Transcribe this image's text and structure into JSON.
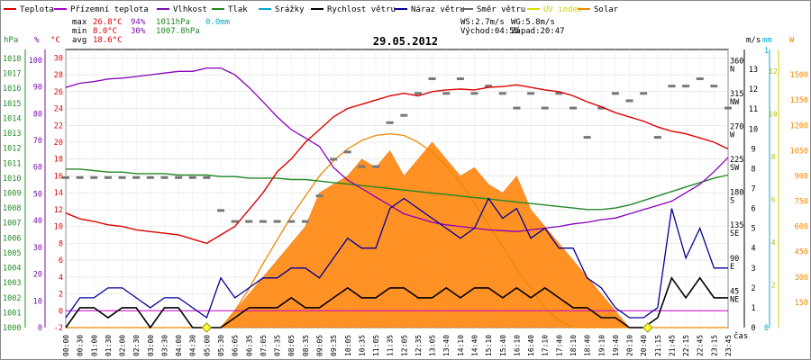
{
  "chart_data": {
    "type": "line",
    "title": "29.05.2012",
    "xlabel": "čas",
    "x_ticks": [
      "00:00",
      "00:30",
      "01:00",
      "01:30",
      "02:00",
      "02:30",
      "03:00",
      "03:30",
      "04:00",
      "04:30",
      "05:00",
      "05:30",
      "06:05",
      "06:35",
      "07:05",
      "07:35",
      "08:05",
      "08:35",
      "09:05",
      "09:35",
      "10:05",
      "10:35",
      "11:05",
      "11:35",
      "12:05",
      "12:35",
      "13:05",
      "13:40",
      "14:10",
      "14:40",
      "15:10",
      "15:40",
      "16:10",
      "16:40",
      "17:10",
      "17:40",
      "18:10",
      "18:40",
      "19:10",
      "19:40",
      "20:10",
      "20:40",
      "21:15",
      "21:45",
      "22:15",
      "22:45",
      "23:15",
      "23:45"
    ],
    "legend": [
      {
        "name": "Teplota",
        "color": "#dd0000"
      },
      {
        "name": "Přízemní teplota",
        "color": "#aa00cc"
      },
      {
        "name": "Vlhkost",
        "color": "#7711aa"
      },
      {
        "name": "Tlak",
        "color": "#228822"
      },
      {
        "name": "Srážky",
        "color": "#00aacc"
      },
      {
        "name": "Rychlost větru",
        "color": "#000000"
      },
      {
        "name": "Náraz větru",
        "color": "#000099"
      },
      {
        "name": "Směr větru",
        "color": "#666666"
      },
      {
        "name": "UV index",
        "color": "#dddd00"
      },
      {
        "name": "Solar",
        "color": "#ee8800"
      }
    ],
    "stats": {
      "max_label": "max",
      "min_label": "min",
      "avg_label": "avg",
      "max_temp": "26.8°C",
      "max_hum": "94%",
      "max_press": "1011hPa",
      "max_rain": "0.0mm",
      "min_temp": "8.0°C",
      "min_hum": "30%",
      "min_press": "1007.8hPa",
      "avg_temp": "18.6°C"
    },
    "info": {
      "ws": "WS:2.7m/s",
      "wg": "WG:5.8m/s",
      "sunrise": "Východ:04:56",
      "sunset": "Západ:20:47"
    },
    "axes": {
      "pressure": {
        "unit": "hPa",
        "ticks": [
          "1000",
          "1001",
          "1002",
          "1003",
          "1004",
          "1005",
          "1006",
          "1007",
          "1008",
          "1009",
          "1010",
          "1011",
          "1012",
          "1013",
          "1014",
          "1015",
          "1016",
          "1017",
          "1018"
        ]
      },
      "humidity": {
        "unit": "%",
        "ticks": [
          "0",
          "10",
          "20",
          "30",
          "40",
          "50",
          "60",
          "70",
          "80",
          "90",
          "100"
        ]
      },
      "temperature": {
        "unit": "°C",
        "ticks": [
          "-2",
          "0",
          "2",
          "4",
          "6",
          "8",
          "10",
          "12",
          "14",
          "16",
          "18",
          "20",
          "22",
          "24",
          "26",
          "28",
          "30"
        ]
      },
      "direction": {
        "ticks": [
          "45",
          "NE",
          "90",
          "E",
          "135",
          "SE",
          "180",
          "S",
          "225",
          "SW",
          "270",
          "W",
          "315",
          "NW",
          "360",
          "N"
        ]
      },
      "wind": {
        "unit": "m/s",
        "ticks": [
          "0",
          "1",
          "2",
          "3",
          "4",
          "5",
          "6",
          "7",
          "8",
          "9",
          "10",
          "11",
          "12",
          "13"
        ]
      },
      "rain": {
        "unit": "mm",
        "ticks": [
          "0",
          "1"
        ]
      },
      "uv": {
        "unit": "",
        "ticks": [
          "2",
          "4",
          "6",
          "8",
          "10",
          "12"
        ]
      },
      "solar": {
        "unit": "W",
        "ticks": [
          "150",
          "300",
          "450",
          "600",
          "750",
          "900",
          "1050",
          "1200",
          "1350",
          "1500"
        ]
      }
    },
    "series": [
      {
        "name": "Teplota",
        "unit": "°C",
        "values": [
          11.6,
          10.9,
          10.6,
          10.2,
          10.0,
          9.6,
          9.4,
          9.2,
          9.0,
          8.5,
          8.0,
          9.0,
          10.0,
          12.0,
          14.0,
          16.5,
          18.0,
          20.0,
          21.5,
          23.0,
          24.0,
          24.5,
          25.0,
          25.5,
          25.8,
          25.5,
          26.0,
          26.2,
          26.3,
          26.2,
          26.5,
          26.6,
          26.8,
          26.5,
          26.2,
          26.0,
          25.5,
          24.8,
          24.2,
          23.5,
          23.0,
          22.5,
          21.8,
          21.3,
          21.0,
          20.5,
          20.0,
          19.2
        ]
      },
      {
        "name": "Přízemní teplota",
        "unit": "°C",
        "values": [
          26.5,
          27.0,
          27.2,
          27.5,
          27.6,
          27.8,
          28.0,
          28.2,
          28.4,
          28.4,
          28.8,
          28.8,
          28.0,
          26.5,
          24.8,
          23.0,
          21.5,
          20.5,
          19.5,
          17.0,
          15.5,
          14.5,
          13.5,
          12.5,
          11.5,
          11.0,
          10.5,
          10.2,
          10.0,
          9.8,
          9.6,
          9.5,
          9.4,
          9.6,
          9.8,
          10.0,
          10.3,
          10.5,
          10.8,
          11.0,
          11.5,
          12.0,
          12.5,
          13.0,
          14.0,
          15.0,
          16.5,
          18.2
        ]
      },
      {
        "name": "Tlak",
        "unit": "hPa",
        "values": [
          1010.6,
          1010.6,
          1010.5,
          1010.4,
          1010.4,
          1010.3,
          1010.3,
          1010.3,
          1010.2,
          1010.2,
          1010.2,
          1010.1,
          1010.1,
          1010.0,
          1010.0,
          1010.0,
          1009.9,
          1009.9,
          1009.8,
          1009.7,
          1009.6,
          1009.5,
          1009.4,
          1009.3,
          1009.2,
          1009.1,
          1009.0,
          1008.9,
          1008.8,
          1008.7,
          1008.6,
          1008.5,
          1008.4,
          1008.3,
          1008.2,
          1008.1,
          1008.0,
          1007.9,
          1007.9,
          1008.0,
          1008.2,
          1008.5,
          1008.8,
          1009.1,
          1009.4,
          1009.7,
          1010.0,
          1010.2
        ]
      },
      {
        "name": "Rychlost větru",
        "unit": "m/s",
        "values": [
          0.0,
          1.0,
          1.0,
          0.5,
          1.0,
          1.0,
          0.0,
          1.0,
          1.0,
          0.0,
          0.0,
          0.0,
          0.5,
          1.0,
          1.0,
          1.0,
          1.5,
          1.0,
          1.0,
          1.5,
          2.0,
          1.5,
          1.5,
          2.0,
          2.0,
          1.5,
          1.5,
          2.0,
          1.5,
          2.0,
          2.0,
          1.5,
          2.0,
          1.5,
          2.0,
          1.5,
          1.0,
          1.0,
          0.5,
          0.5,
          0.0,
          0.0,
          0.5,
          2.5,
          1.5,
          2.5,
          1.5,
          1.5
        ]
      },
      {
        "name": "Náraz větru",
        "unit": "m/s",
        "values": [
          0.5,
          1.5,
          1.5,
          2.0,
          2.0,
          1.5,
          1.0,
          1.5,
          1.5,
          1.0,
          0.5,
          2.5,
          1.5,
          2.0,
          2.5,
          2.5,
          3.0,
          3.0,
          2.5,
          3.5,
          4.5,
          4.0,
          4.0,
          6.0,
          6.5,
          6.0,
          5.5,
          5.0,
          4.5,
          5.0,
          6.5,
          5.5,
          6.0,
          4.5,
          5.0,
          4.0,
          4.0,
          2.5,
          2.0,
          1.0,
          0.5,
          0.5,
          1.0,
          6.0,
          3.5,
          5.0,
          3.0,
          3.0
        ]
      },
      {
        "name": "Směr větru",
        "unit": "°",
        "values": [
          205,
          205,
          205,
          205,
          205,
          205,
          205,
          205,
          205,
          205,
          205,
          160,
          145,
          145,
          145,
          145,
          145,
          145,
          180,
          230,
          240,
          220,
          220,
          280,
          290,
          320,
          340,
          320,
          340,
          320,
          330,
          320,
          300,
          320,
          300,
          320,
          300,
          260,
          300,
          320,
          310,
          320,
          260,
          330,
          330,
          340,
          330,
          300
        ]
      },
      {
        "name": "Solar",
        "unit": "W/m²",
        "values": [
          0,
          0,
          0,
          0,
          0,
          0,
          0,
          0,
          0,
          0,
          0,
          0,
          100,
          200,
          300,
          400,
          500,
          600,
          800,
          850,
          900,
          1000,
          950,
          1050,
          900,
          1000,
          1100,
          1000,
          900,
          950,
          850,
          800,
          900,
          700,
          600,
          500,
          400,
          300,
          200,
          100,
          0,
          0,
          0,
          0,
          0,
          0,
          0,
          0
        ]
      },
      {
        "name": "Solar max",
        "unit": "W/m²",
        "values": [
          0,
          0,
          0,
          0,
          0,
          0,
          0,
          0,
          0,
          0,
          0,
          0,
          100,
          230,
          380,
          520,
          660,
          780,
          900,
          990,
          1060,
          1110,
          1140,
          1150,
          1140,
          1100,
          1040,
          960,
          860,
          740,
          610,
          480,
          350,
          230,
          120,
          40,
          0,
          0,
          0,
          0,
          0,
          0,
          0,
          0,
          0,
          0,
          0,
          0
        ]
      },
      {
        "name": "Srážky",
        "unit": "mm",
        "values": [
          0,
          0,
          0,
          0,
          0,
          0,
          0,
          0,
          0,
          0,
          0,
          0,
          0,
          0,
          0,
          0,
          0,
          0,
          0,
          0,
          0,
          0,
          0,
          0,
          0,
          0,
          0,
          0,
          0,
          0,
          0,
          0,
          0,
          0,
          0,
          0,
          0,
          0,
          0,
          0,
          0,
          0,
          0,
          0,
          0,
          0,
          0,
          0
        ]
      }
    ],
    "markers": [
      {
        "name": "sunrise",
        "time_index": 10.0
      },
      {
        "name": "sunset",
        "time_index": 41.3
      }
    ]
  }
}
